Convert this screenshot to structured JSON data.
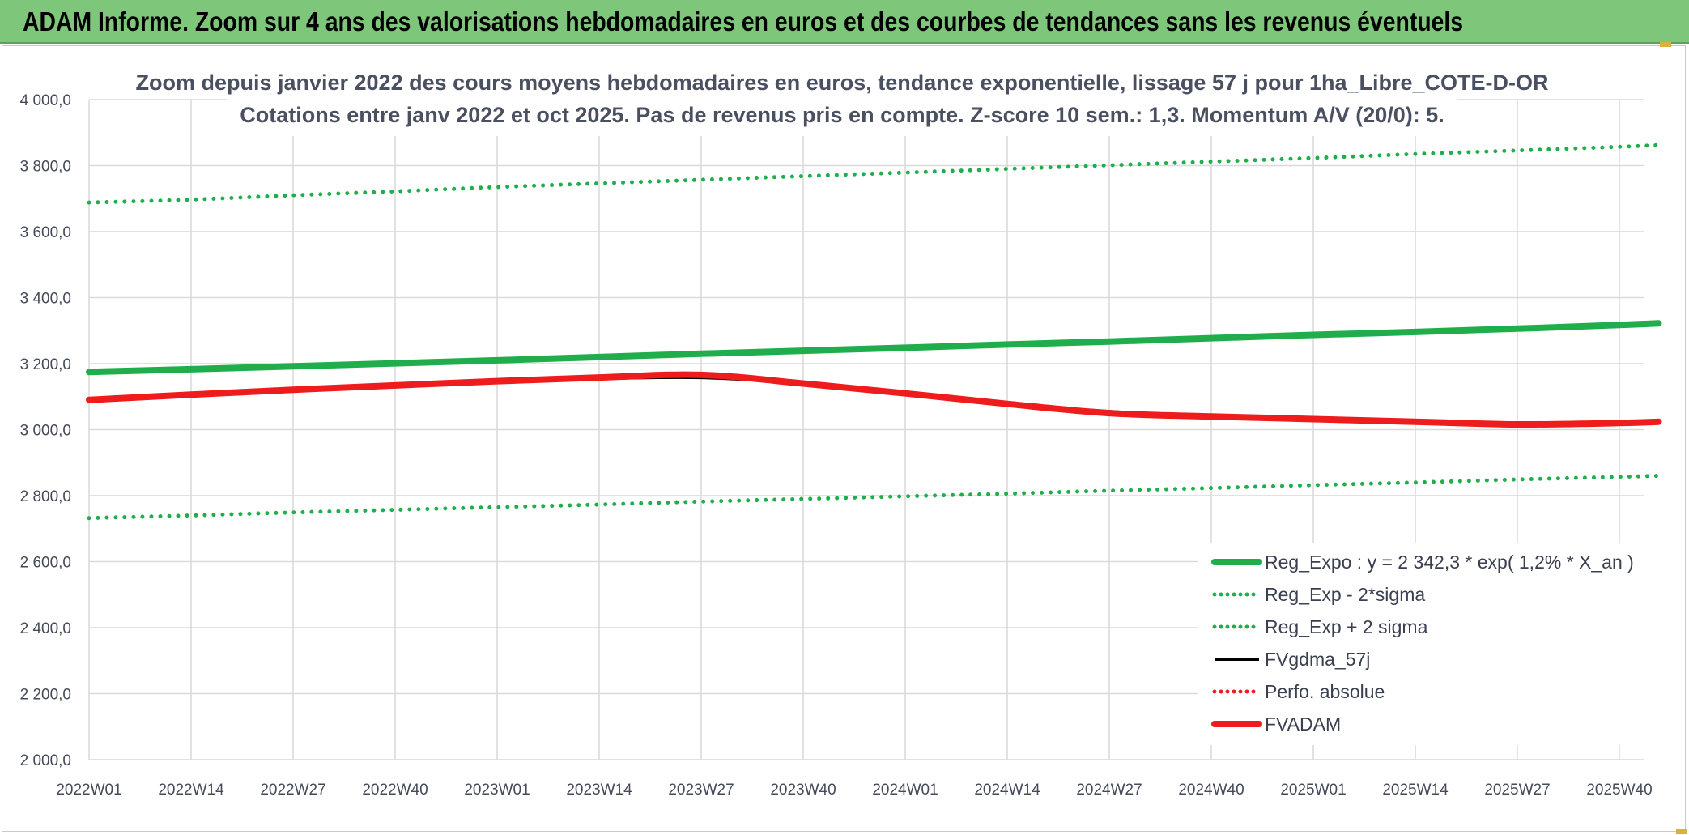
{
  "banner": {
    "title": "ADAM Informe. Zoom sur 4 ans des valorisations hebdomadaires en euros et des courbes de tendances sans les revenus éventuels"
  },
  "colors": {
    "banner": "#7dc67a",
    "green": "#1fae4b",
    "red": "#ee1c1c",
    "black": "#000000",
    "grid": "#d9d9d9"
  },
  "chart_data": {
    "type": "line",
    "title_line1": "Zoom depuis janvier 2022 des cours moyens hebdomadaires en euros, tendance exponentielle, lissage 57 j pour 1ha_Libre_COTE-D-OR",
    "title_line2": "Cotations entre janv 2022 et oct 2025. Pas de revenus pris en compte. Z-score 10 sem.: 1,3. Momentum A/V (20/0): 5.",
    "xlabel": "",
    "ylabel": "",
    "ylim": [
      2000,
      4000
    ],
    "y_ticks": [
      "4 000,0",
      "3 800,0",
      "3 600,0",
      "3 400,0",
      "3 200,0",
      "3 000,0",
      "2 800,0",
      "2 600,0",
      "2 400,0",
      "2 200,0",
      "2 000,0"
    ],
    "x_ticks": [
      "2022W01",
      "2022W14",
      "2022W27",
      "2022W40",
      "2023W01",
      "2023W14",
      "2023W27",
      "2023W40",
      "2024W01",
      "2024W14",
      "2024W27",
      "2024W40",
      "2025W01",
      "2025W14",
      "2025W27",
      "2025W40"
    ],
    "grid": true,
    "legend_position": "bottom-right",
    "x_weeks": [
      0,
      13,
      26,
      39,
      52,
      65,
      78,
      91,
      104,
      117,
      130,
      143,
      156,
      169,
      182,
      195,
      200
    ],
    "series": [
      {
        "name": "Reg_Expo : y = 2 342,3 * exp( 1,2% *  X_an )",
        "style": "solid-thick",
        "color": "#1fae4b",
        "values": [
          3175,
          3183,
          3192,
          3201,
          3210,
          3220,
          3230,
          3239,
          3248,
          3258,
          3267,
          3277,
          3287,
          3296,
          3306,
          3317,
          3322
        ]
      },
      {
        "name": "Reg_Exp - 2*sigma",
        "style": "dotted",
        "color": "#1fae4b",
        "values": [
          2732,
          2740,
          2749,
          2757,
          2765,
          2773,
          2782,
          2790,
          2798,
          2806,
          2815,
          2823,
          2832,
          2840,
          2849,
          2857,
          2860
        ]
      },
      {
        "name": "Reg_Exp + 2 sigma",
        "style": "dotted",
        "color": "#1fae4b",
        "values": [
          3688,
          3697,
          3710,
          3722,
          3735,
          3746,
          3757,
          3768,
          3779,
          3790,
          3801,
          3812,
          3823,
          3835,
          3846,
          3857,
          3862
        ]
      },
      {
        "name": "FVgdma_57j",
        "style": "solid-thin",
        "color": "#000000",
        "values": [
          3090,
          3105,
          3120,
          3133,
          3145,
          3155,
          3158,
          3140,
          3110,
          3078,
          3055,
          3040,
          3032,
          3024,
          3018,
          3020,
          3022
        ]
      },
      {
        "name": "Perfo. absolue",
        "style": "dotted",
        "color": "#ee1c1c",
        "values": []
      },
      {
        "name": "FVADAM",
        "style": "solid-thick",
        "color": "#ee1c1c",
        "values": [
          3090,
          3106,
          3121,
          3134,
          3147,
          3158,
          3166,
          3140,
          3110,
          3078,
          3050,
          3040,
          3032,
          3024,
          3016,
          3020,
          3024
        ]
      }
    ]
  }
}
